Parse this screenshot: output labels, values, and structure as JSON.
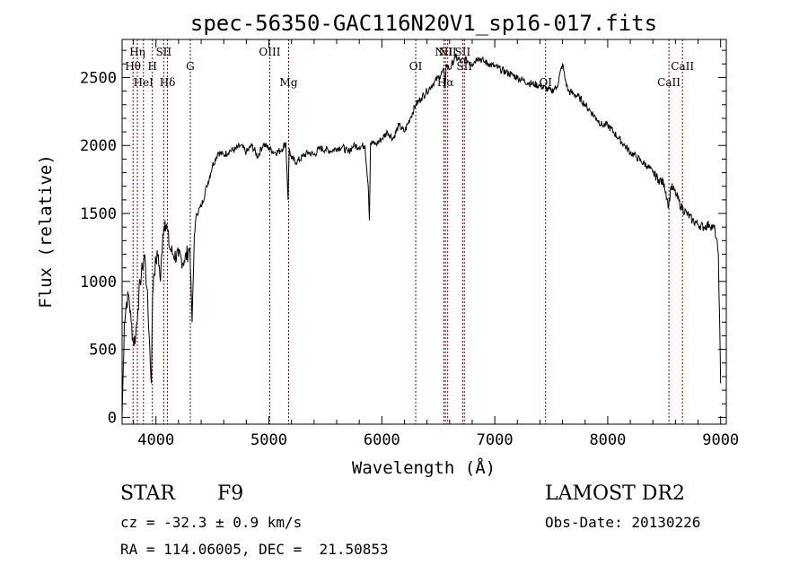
{
  "chart_data": {
    "type": "line",
    "title": "spec-56350-GAC116N20V1_sp16-017.fits",
    "xlabel": "Wavelength (Å)",
    "ylabel": "Flux (relative)",
    "xlim": [
      3700,
      9050
    ],
    "ylim": [
      -50,
      2780
    ],
    "xticks": [
      4000,
      5000,
      6000,
      7000,
      8000,
      9000
    ],
    "xtick_labels": [
      "4000",
      "5000",
      "6000",
      "7000",
      "8000",
      "9000"
    ],
    "yticks": [
      0,
      500,
      1000,
      1500,
      2000,
      2500
    ],
    "ytick_labels": [
      "0",
      "500",
      "1000",
      "1500",
      "2000",
      "2500"
    ],
    "grid": false,
    "line_color": "#000000",
    "marker_color": "#8b0000",
    "series": [
      {
        "x": [
          3700,
          3720,
          3740,
          3760,
          3780,
          3800,
          3820,
          3840,
          3860,
          3880,
          3900,
          3920,
          3940,
          3960,
          3970,
          3980,
          4000,
          4020,
          4040,
          4060,
          4080,
          4100,
          4120,
          4150,
          4200,
          4250,
          4300,
          4320,
          4340,
          4360,
          4400,
          4450,
          4500,
          4550,
          4600,
          4650,
          4700,
          4750,
          4800,
          4850,
          4900,
          4950,
          5000,
          5050,
          5100,
          5150,
          5170,
          5180,
          5200,
          5250,
          5300,
          5350,
          5400,
          5450,
          5500,
          5550,
          5600,
          5650,
          5700,
          5750,
          5800,
          5850,
          5880,
          5890,
          5900,
          5950,
          6000,
          6050,
          6100,
          6150,
          6200,
          6250,
          6300,
          6350,
          6400,
          6450,
          6500,
          6550,
          6560,
          6570,
          6600,
          6650,
          6700,
          6750,
          6800,
          6850,
          6900,
          6950,
          7000,
          7050,
          7100,
          7150,
          7200,
          7250,
          7300,
          7350,
          7400,
          7450,
          7500,
          7550,
          7600,
          7620,
          7650,
          7700,
          7750,
          7800,
          7850,
          7900,
          7950,
          8000,
          8050,
          8100,
          8150,
          8200,
          8250,
          8300,
          8350,
          8400,
          8450,
          8500,
          8540,
          8560,
          8600,
          8650,
          8700,
          8750,
          8800,
          8850,
          8900,
          8950,
          8980,
          9000
        ],
        "y": [
          0,
          700,
          850,
          900,
          700,
          550,
          600,
          800,
          1000,
          1100,
          1200,
          950,
          600,
          250,
          900,
          1050,
          1150,
          1200,
          1000,
          1350,
          1450,
          1380,
          1250,
          1200,
          1180,
          1150,
          1250,
          700,
          1350,
          1500,
          1550,
          1700,
          1850,
          1950,
          1930,
          1960,
          1970,
          2000,
          1950,
          2000,
          1920,
          2010,
          1980,
          1950,
          1960,
          2020,
          1600,
          1980,
          1900,
          1880,
          1920,
          1950,
          1930,
          1980,
          1970,
          1960,
          1980,
          1990,
          1950,
          2000,
          1990,
          2000,
          1700,
          1450,
          2020,
          2010,
          2050,
          2100,
          2050,
          2150,
          2100,
          2200,
          2300,
          2350,
          2400,
          2450,
          2500,
          2550,
          2420,
          2600,
          2560,
          2650,
          2620,
          2630,
          2600,
          2650,
          2620,
          2600,
          2580,
          2560,
          2540,
          2520,
          2500,
          2480,
          2460,
          2450,
          2440,
          2420,
          2400,
          2430,
          2600,
          2500,
          2400,
          2380,
          2350,
          2300,
          2250,
          2200,
          2150,
          2150,
          2100,
          2050,
          2000,
          1950,
          1920,
          1880,
          1850,
          1800,
          1750,
          1720,
          1550,
          1700,
          1650,
          1550,
          1500,
          1450,
          1420,
          1400,
          1420,
          1380,
          1200,
          250
        ]
      }
    ],
    "line_markers": [
      {
        "label": "Hη",
        "x": 3835,
        "row": 1
      },
      {
        "label": "Hθ",
        "x": 3797,
        "row": 2
      },
      {
        "label": "HeI",
        "x": 3889,
        "row": 3
      },
      {
        "label": "SII",
        "x": 4068,
        "row": 1
      },
      {
        "label": "H",
        "x": 3968,
        "row": 2
      },
      {
        "label": "Hδ",
        "x": 4102,
        "row": 3
      },
      {
        "label": "G",
        "x": 4304,
        "row": 2
      },
      {
        "label": "OIII",
        "x": 5007,
        "row": 1
      },
      {
        "label": "Mg",
        "x": 5175,
        "row": 3
      },
      {
        "label": "OI",
        "x": 6300,
        "row": 2
      },
      {
        "label": "NII",
        "x": 6549,
        "row": 1
      },
      {
        "label": "Hα",
        "x": 6563,
        "row": 3
      },
      {
        "label": "NII",
        "x": 6583,
        "row": 1
      },
      {
        "label": "SII",
        "x": 6716,
        "row": 1
      },
      {
        "label": "SII",
        "x": 6731,
        "row": 2
      },
      {
        "label": "OI",
        "x": 7450,
        "row": 3
      },
      {
        "label": "CaII",
        "x": 8662,
        "row": 2
      },
      {
        "label": "CaII",
        "x": 8542,
        "row": 3
      }
    ]
  },
  "info": {
    "object_class": "STAR",
    "subclass": "F9",
    "redshift": "cz = -32.3 ± 0.9 km/s",
    "coords": "RA = 114.06005, DEC =  21.50853",
    "survey": "LAMOST DR2",
    "obs_date": "Obs-Date: 20130226"
  }
}
